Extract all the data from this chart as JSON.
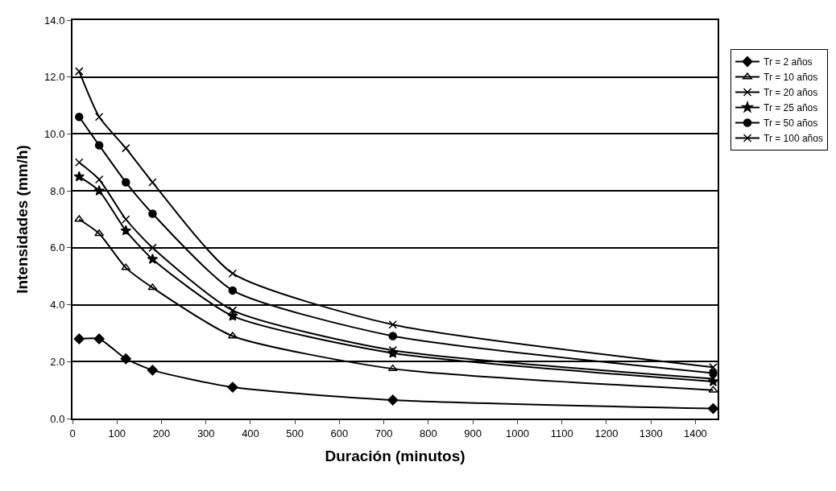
{
  "chart_data": {
    "type": "line",
    "xlabel": "Duración (minutos)",
    "ylabel": "Intensidades (mm/h)",
    "x": [
      15,
      60,
      120,
      180,
      360,
      720,
      1440
    ],
    "series": [
      {
        "name": "Tr = 2 años",
        "color": "#000000",
        "marker": "diamond",
        "values": [
          2.8,
          2.8,
          2.1,
          1.7,
          1.1,
          0.65,
          0.35
        ]
      },
      {
        "name": "Tr = 10 años",
        "color": "#000000",
        "marker": "triangle",
        "values": [
          7.0,
          6.5,
          5.3,
          4.6,
          2.9,
          1.75,
          1.0
        ]
      },
      {
        "name": "Tr = 20 años",
        "color": "#000000",
        "marker": "cross",
        "values": [
          9.0,
          8.4,
          7.0,
          6.0,
          3.8,
          2.4,
          1.4
        ]
      },
      {
        "name": "Tr = 25 años",
        "color": "#000000",
        "marker": "star",
        "values": [
          8.5,
          8.0,
          6.6,
          5.6,
          3.6,
          2.3,
          1.3
        ]
      },
      {
        "name": "Tr = 50 años",
        "color": "#000000",
        "marker": "circle",
        "values": [
          10.6,
          9.6,
          8.3,
          7.2,
          4.5,
          2.9,
          1.6
        ]
      },
      {
        "name": "Tr = 100 años",
        "color": "#000000",
        "marker": "cross",
        "values": [
          12.2,
          10.6,
          9.5,
          8.3,
          5.1,
          3.3,
          1.8
        ]
      }
    ],
    "xlim": [
      0,
      1450
    ],
    "xticks": [
      0,
      100,
      200,
      300,
      400,
      500,
      600,
      700,
      800,
      900,
      1000,
      1100,
      1200,
      1300,
      1400
    ],
    "ylim": [
      0,
      14
    ],
    "yticks": [
      {
        "value": 0,
        "label": "0.0"
      },
      {
        "value": 2,
        "label": "2.0"
      },
      {
        "value": 4,
        "label": "4.0"
      },
      {
        "value": 6,
        "label": "6.0"
      },
      {
        "value": 8,
        "label": "8.0"
      },
      {
        "value": 10,
        "label": "10.0"
      },
      {
        "value": 12,
        "label": "12.0"
      },
      {
        "value": 14,
        "label": "14.0"
      }
    ],
    "grid": "y",
    "legend": "right",
    "line_style": "solid"
  }
}
